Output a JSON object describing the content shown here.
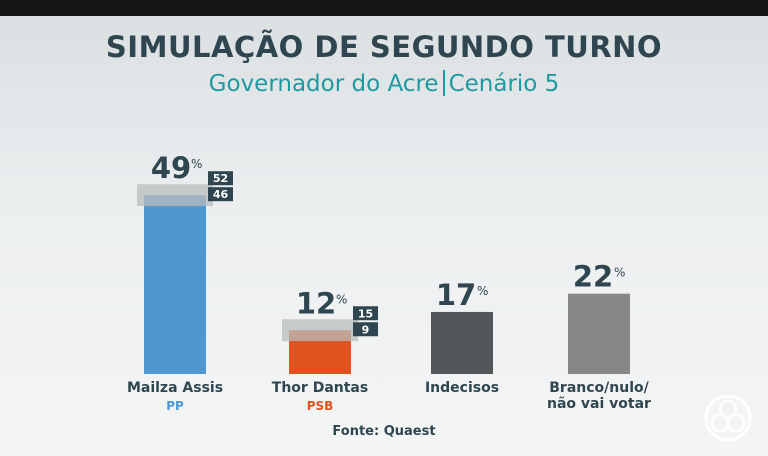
{
  "header": {
    "title": "SIMULAÇÃO DE SEGUNDO TURNO",
    "subtitle_left": "Governador do Acre",
    "subtitle_right": "Cenário 5"
  },
  "source": "Fonte: Quaest",
  "colors": {
    "title": "#2f4650",
    "subtitle": "#1e9aa0",
    "range_box": "#2f4650"
  },
  "chart_data": {
    "type": "bar",
    "title": "SIMULAÇÃO DE SEGUNDO TURNO",
    "subtitle": "Governador do Acre | Cenário 5",
    "unit": "%",
    "ylim": [
      0,
      55
    ],
    "grid": false,
    "categories": [
      "Mailza Assis",
      "Thor Dantas",
      "Indecisos",
      "Branco/nulo/\nnão vai votar"
    ],
    "parties": [
      "PP",
      "PSB",
      "",
      ""
    ],
    "party_colors": [
      "#4f97d1",
      "#e0531f",
      "",
      ""
    ],
    "values": [
      49,
      12,
      17,
      22
    ],
    "margin_high": [
      52,
      15,
      null,
      null
    ],
    "margin_low": [
      46,
      9,
      null,
      null
    ],
    "bar_colors": [
      "#4f97d1",
      "#e0531f",
      "#545759",
      "#858788"
    ]
  }
}
